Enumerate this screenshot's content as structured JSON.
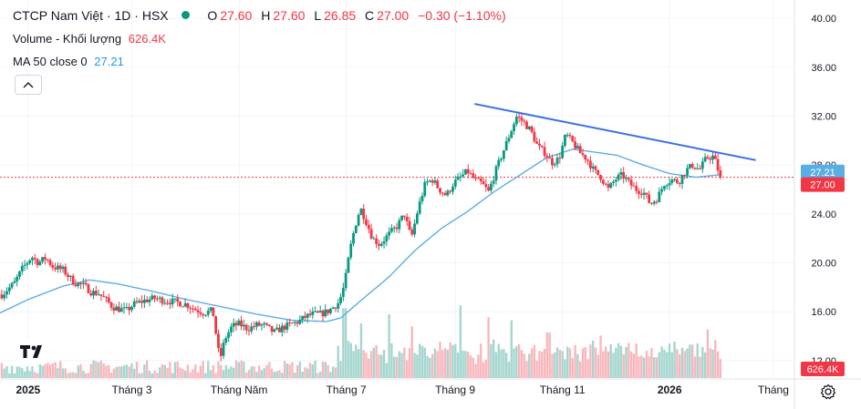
{
  "legend": {
    "symbol_title": "CTCP Nam Việt · 1D · HSX",
    "ohlc": {
      "o_key": "O",
      "o_val": "27.60",
      "h_key": "H",
      "h_val": "27.60",
      "l_key": "L",
      "l_val": "26.85",
      "c_key": "C",
      "c_val": "27.00",
      "change": "−0.30 (−1.10%)"
    },
    "volume_label": "Volume - Khối lượng",
    "volume_value": "626.4K",
    "ma_label": "MA 50 close 0",
    "ma_value": "27.21"
  },
  "colors": {
    "up": "#089981",
    "down": "#f23645",
    "ma": "#5aaee6",
    "trendline": "#3a6ee8",
    "price_line": "#f23645",
    "volume_up": "#a5d6cf",
    "volume_down": "#f7b8bd"
  },
  "icons": {
    "collapse": "chevron-up-icon",
    "logo": "tradingview-logo-icon",
    "settings": "gear-icon"
  },
  "chart_data": {
    "type": "candlestick",
    "title": "CTCP Nam Việt · 1D · HSX",
    "y_axis": {
      "ticks": [
        "40.00",
        "36.00",
        "32.00",
        "28.00",
        "24.00",
        "20.00",
        "16.00",
        "12.00"
      ],
      "tick_values": [
        40,
        36,
        32,
        28,
        24,
        20,
        16,
        12
      ],
      "range": [
        10.5,
        41.5
      ]
    },
    "x_axis": {
      "labels": [
        "2025",
        "Tháng 3",
        "Tháng Năm",
        "Tháng 7",
        "Tháng 9",
        "Tháng 11",
        "2026",
        "Tháng"
      ],
      "label_days": [
        0,
        59,
        120,
        181,
        243,
        304,
        365,
        424
      ],
      "range_days": [
        -16,
        436
      ]
    },
    "price_labels": {
      "ma": "27.21",
      "last": "27.00",
      "volume": "626.4K"
    },
    "last_close": 27.0,
    "ma_last": 27.21,
    "price_anchors": [
      [
        -15,
        17.4
      ],
      [
        -8,
        18.3
      ],
      [
        -3,
        19.6
      ],
      [
        2,
        20.5
      ],
      [
        6,
        20.0
      ],
      [
        10,
        20.4
      ],
      [
        14,
        19.7
      ],
      [
        20,
        19.4
      ],
      [
        26,
        18.4
      ],
      [
        32,
        18.1
      ],
      [
        36,
        17.6
      ],
      [
        40,
        17.5
      ],
      [
        44,
        17.0
      ],
      [
        48,
        16.4
      ],
      [
        52,
        16.2
      ],
      [
        56,
        16.1
      ],
      [
        60,
        16.6
      ],
      [
        66,
        16.9
      ],
      [
        72,
        17.1
      ],
      [
        78,
        16.9
      ],
      [
        84,
        16.8
      ],
      [
        90,
        16.6
      ],
      [
        95,
        16.2
      ],
      [
        100,
        15.9
      ],
      [
        105,
        16.1
      ],
      [
        109,
        12.0
      ],
      [
        112,
        13.8
      ],
      [
        116,
        14.8
      ],
      [
        120,
        15.0
      ],
      [
        125,
        14.6
      ],
      [
        130,
        14.9
      ],
      [
        134,
        14.9
      ],
      [
        140,
        14.3
      ],
      [
        145,
        14.7
      ],
      [
        150,
        15.0
      ],
      [
        154,
        15.2
      ],
      [
        158,
        15.6
      ],
      [
        162,
        15.8
      ],
      [
        166,
        15.8
      ],
      [
        170,
        16.0
      ],
      [
        174,
        16.4
      ],
      [
        177,
        16.8
      ],
      [
        180,
        18.2
      ],
      [
        183,
        21.0
      ],
      [
        186,
        23.0
      ],
      [
        189,
        24.5
      ],
      [
        192,
        23.5
      ],
      [
        196,
        22.0
      ],
      [
        200,
        21.5
      ],
      [
        205,
        22.3
      ],
      [
        210,
        23.0
      ],
      [
        214,
        24.0
      ],
      [
        218,
        22.0
      ],
      [
        222,
        24.5
      ],
      [
        226,
        26.5
      ],
      [
        230,
        26.8
      ],
      [
        234,
        26.0
      ],
      [
        238,
        25.5
      ],
      [
        242,
        26.5
      ],
      [
        246,
        27.0
      ],
      [
        250,
        27.5
      ],
      [
        254,
        26.8
      ],
      [
        258,
        26.5
      ],
      [
        262,
        25.8
      ],
      [
        266,
        27.5
      ],
      [
        270,
        29.0
      ],
      [
        274,
        30.5
      ],
      [
        278,
        32.0
      ],
      [
        282,
        31.5
      ],
      [
        286,
        30.8
      ],
      [
        290,
        29.5
      ],
      [
        294,
        29.0
      ],
      [
        298,
        28.2
      ],
      [
        302,
        28.5
      ],
      [
        306,
        30.5
      ],
      [
        310,
        29.8
      ],
      [
        314,
        29.0
      ],
      [
        318,
        28.5
      ],
      [
        322,
        27.5
      ],
      [
        326,
        27.0
      ],
      [
        330,
        26.0
      ],
      [
        334,
        26.8
      ],
      [
        338,
        27.2
      ],
      [
        342,
        26.5
      ],
      [
        346,
        26.0
      ],
      [
        350,
        25.8
      ],
      [
        354,
        24.8
      ],
      [
        358,
        25.3
      ],
      [
        362,
        26.5
      ],
      [
        366,
        26.8
      ],
      [
        370,
        26.6
      ],
      [
        374,
        27.5
      ],
      [
        378,
        28.0
      ],
      [
        382,
        27.6
      ],
      [
        386,
        28.6
      ],
      [
        390,
        28.7
      ],
      [
        394,
        27.0
      ]
    ],
    "ma_anchors": [
      [
        -16,
        15.9
      ],
      [
        0,
        17.0
      ],
      [
        20,
        18.1
      ],
      [
        35,
        18.6
      ],
      [
        50,
        18.3
      ],
      [
        70,
        17.7
      ],
      [
        90,
        17.0
      ],
      [
        110,
        16.4
      ],
      [
        130,
        15.8
      ],
      [
        150,
        15.3
      ],
      [
        170,
        15.2
      ],
      [
        178,
        15.5
      ],
      [
        190,
        17.0
      ],
      [
        205,
        18.8
      ],
      [
        220,
        21.0
      ],
      [
        235,
        22.8
      ],
      [
        250,
        24.2
      ],
      [
        265,
        25.8
      ],
      [
        280,
        27.2
      ],
      [
        295,
        28.6
      ],
      [
        310,
        29.3
      ],
      [
        320,
        29.1
      ],
      [
        335,
        28.8
      ],
      [
        350,
        28.0
      ],
      [
        365,
        27.3
      ],
      [
        380,
        27.0
      ],
      [
        394,
        27.21
      ]
    ],
    "trendline": [
      [
        254,
        33.0
      ],
      [
        414,
        28.4
      ]
    ],
    "volume": {
      "max_k": 3000,
      "last_k": 626.4,
      "spikes": [
        [
          180,
          2300
        ],
        [
          190,
          1800
        ],
        [
          206,
          2100
        ],
        [
          218,
          1700
        ],
        [
          246,
          2400
        ],
        [
          262,
          2000
        ],
        [
          275,
          1900
        ],
        [
          296,
          1500
        ],
        [
          326,
          1400
        ],
        [
          368,
          1200
        ],
        [
          386,
          1600
        ]
      ]
    }
  }
}
